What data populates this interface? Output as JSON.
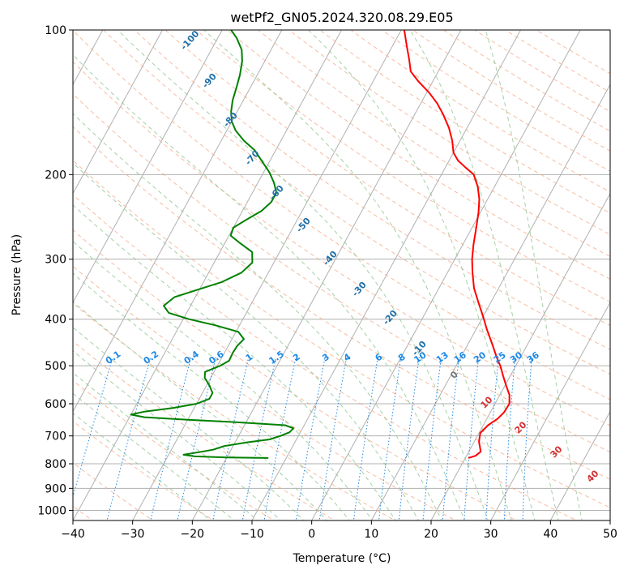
{
  "chart_data": {
    "type": "line",
    "title": "wetPf2_GN05.2024.320.08.29.E05",
    "xlabel": "Temperature (°C)",
    "ylabel": "Pressure (hPa)",
    "xlim": [
      -40,
      50
    ],
    "ylim": [
      1050,
      100
    ],
    "y_scale": "log",
    "x_ticks": [
      -40,
      -30,
      -20,
      -10,
      0,
      10,
      20,
      30,
      40,
      50
    ],
    "x_tick_labels": [
      "−40",
      "−30",
      "−20",
      "−10",
      "0",
      "10",
      "20",
      "30",
      "40",
      "50"
    ],
    "y_ticks": [
      100,
      200,
      300,
      400,
      500,
      600,
      700,
      800,
      900,
      1000
    ],
    "y_tick_labels": [
      "100",
      "200",
      "300",
      "400",
      "500",
      "600",
      "700",
      "800",
      "900",
      "1000"
    ],
    "grid": true,
    "skew": 45,
    "series": [
      {
        "color": "#ff0000",
        "points": [
          [
            778,
            20.5
          ],
          [
            770,
            21.5
          ],
          [
            755,
            22.0
          ],
          [
            740,
            21.5
          ],
          [
            720,
            20.8
          ],
          [
            690,
            20.2
          ],
          [
            665,
            20.8
          ],
          [
            645,
            21.8
          ],
          [
            625,
            22.3
          ],
          [
            600,
            22.4
          ],
          [
            575,
            21.6
          ],
          [
            550,
            20.2
          ],
          [
            525,
            18.8
          ],
          [
            500,
            17.4
          ],
          [
            480,
            16.0
          ],
          [
            450,
            14.0
          ],
          [
            420,
            11.8
          ],
          [
            395,
            10.0
          ],
          [
            370,
            8.0
          ],
          [
            345,
            5.9
          ],
          [
            320,
            4.2
          ],
          [
            300,
            2.9
          ],
          [
            280,
            1.8
          ],
          [
            260,
            0.8
          ],
          [
            240,
            -0.3
          ],
          [
            225,
            -1.4
          ],
          [
            212,
            -2.8
          ],
          [
            200,
            -4.6
          ],
          [
            193,
            -6.7
          ],
          [
            187,
            -8.5
          ],
          [
            180,
            -10.0
          ],
          [
            170,
            -11.3
          ],
          [
            160,
            -13.0
          ],
          [
            150,
            -15.2
          ],
          [
            142,
            -17.3
          ],
          [
            135,
            -19.6
          ],
          [
            128,
            -22.4
          ],
          [
            122,
            -24.6
          ],
          [
            115,
            -26.0
          ],
          [
            108,
            -27.6
          ],
          [
            100,
            -29.5
          ]
        ]
      },
      {
        "color": "#008000",
        "points": [
          [
            778,
            -13.0
          ],
          [
            776,
            -20.0
          ],
          [
            772,
            -25.5
          ],
          [
            766,
            -27.5
          ],
          [
            758,
            -25.5
          ],
          [
            748,
            -23.0
          ],
          [
            735,
            -21.5
          ],
          [
            722,
            -18.0
          ],
          [
            712,
            -14.5
          ],
          [
            700,
            -13.0
          ],
          [
            688,
            -11.8
          ],
          [
            675,
            -11.5
          ],
          [
            665,
            -13.2
          ],
          [
            655,
            -22.0
          ],
          [
            648,
            -30.0
          ],
          [
            640,
            -37.5
          ],
          [
            632,
            -40.0
          ],
          [
            623,
            -38.0
          ],
          [
            612,
            -33.5
          ],
          [
            600,
            -30.0
          ],
          [
            586,
            -28.3
          ],
          [
            570,
            -28.3
          ],
          [
            550,
            -29.5
          ],
          [
            530,
            -31.0
          ],
          [
            515,
            -31.5
          ],
          [
            500,
            -29.5
          ],
          [
            488,
            -28.5
          ],
          [
            470,
            -28.6
          ],
          [
            455,
            -28.5
          ],
          [
            440,
            -28.0
          ],
          [
            425,
            -29.6
          ],
          [
            412,
            -34.0
          ],
          [
            400,
            -39.0
          ],
          [
            388,
            -43.0
          ],
          [
            375,
            -44.5
          ],
          [
            360,
            -43.5
          ],
          [
            348,
            -40.5
          ],
          [
            335,
            -37.0
          ],
          [
            320,
            -34.5
          ],
          [
            305,
            -33.6
          ],
          [
            290,
            -34.6
          ],
          [
            278,
            -37.4
          ],
          [
            268,
            -39.7
          ],
          [
            258,
            -40.0
          ],
          [
            248,
            -38.5
          ],
          [
            238,
            -36.8
          ],
          [
            228,
            -36.0
          ],
          [
            218,
            -36.0
          ],
          [
            208,
            -37.3
          ],
          [
            198,
            -39.0
          ],
          [
            188,
            -41.2
          ],
          [
            178,
            -43.5
          ],
          [
            170,
            -46.2
          ],
          [
            162,
            -48.5
          ],
          [
            155,
            -50.0
          ],
          [
            148,
            -51.0
          ],
          [
            140,
            -51.8
          ],
          [
            132,
            -52.3
          ],
          [
            124,
            -52.9
          ],
          [
            116,
            -53.8
          ],
          [
            110,
            -54.9
          ],
          [
            104,
            -56.8
          ],
          [
            100,
            -58.5
          ]
        ]
      }
    ],
    "dry_adiabat_labels": [
      "-100",
      "-90",
      "-80",
      "-70",
      "-60",
      "-50",
      "-40",
      "-30",
      "-20",
      "-10"
    ],
    "moist_adiabat_labels": [
      "0",
      "10",
      "20",
      "30",
      "40"
    ],
    "mixing_ratio_labels": [
      "0.1",
      "0.2",
      "0.4",
      "0.6",
      "1",
      "1.5",
      "2",
      "3",
      "4",
      "6",
      "8",
      "10",
      "13",
      "16",
      "20",
      "25",
      "30",
      "36"
    ]
  },
  "colors": {
    "temperature": "#ff0000",
    "dewpoint": "#008000",
    "isotherm": "#b0b0b0",
    "dry_adiabat": "#f4a582",
    "moist_adiabat": "#8fc48f",
    "mixing_ratio": "#1e88e5"
  }
}
